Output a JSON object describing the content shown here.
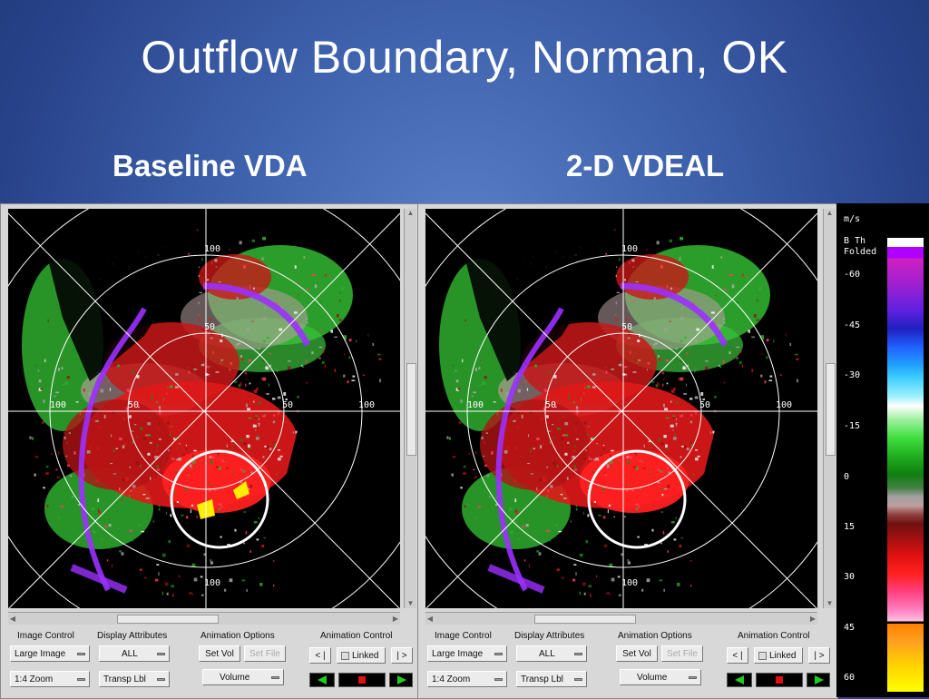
{
  "slide": {
    "title": "Outflow Boundary, Norman, OK",
    "left_heading": "Baseline VDA",
    "right_heading": "2-D VDEAL"
  },
  "radar": {
    "range_labels": {
      "top": "100",
      "mid": "50",
      "left": "100",
      "center_left": "50",
      "center_right": "50",
      "right": "100",
      "bottom": "100"
    }
  },
  "controls": {
    "image_control_label": "Image Control",
    "display_attributes_label": "Display Attributes",
    "animation_options_label": "Animation Options",
    "animation_control_label": "Animation Control",
    "large_image": "Large Image",
    "zoom": "1:4 Zoom",
    "all": "ALL",
    "transp_lbl": "Transp Lbl",
    "set_vol": "Set Vol",
    "set_file": "Set File",
    "volume": "Volume",
    "prev": "< |",
    "linked": "Linked",
    "next": "| >"
  },
  "colorbar": {
    "units": "m/s",
    "folded_line1": "B Th",
    "folded_line2": "Folded",
    "ticks": [
      "-60",
      "-45",
      "-30",
      "-15",
      "0",
      "15",
      "30",
      "45",
      "60"
    ]
  },
  "colors": {
    "background": "#3f62ad",
    "outflow_circle": "#ffffff",
    "inbound": "#2db52d",
    "outbound": "#e01818",
    "folded": "#9b30ff",
    "dealias_error": "#ffee00"
  }
}
